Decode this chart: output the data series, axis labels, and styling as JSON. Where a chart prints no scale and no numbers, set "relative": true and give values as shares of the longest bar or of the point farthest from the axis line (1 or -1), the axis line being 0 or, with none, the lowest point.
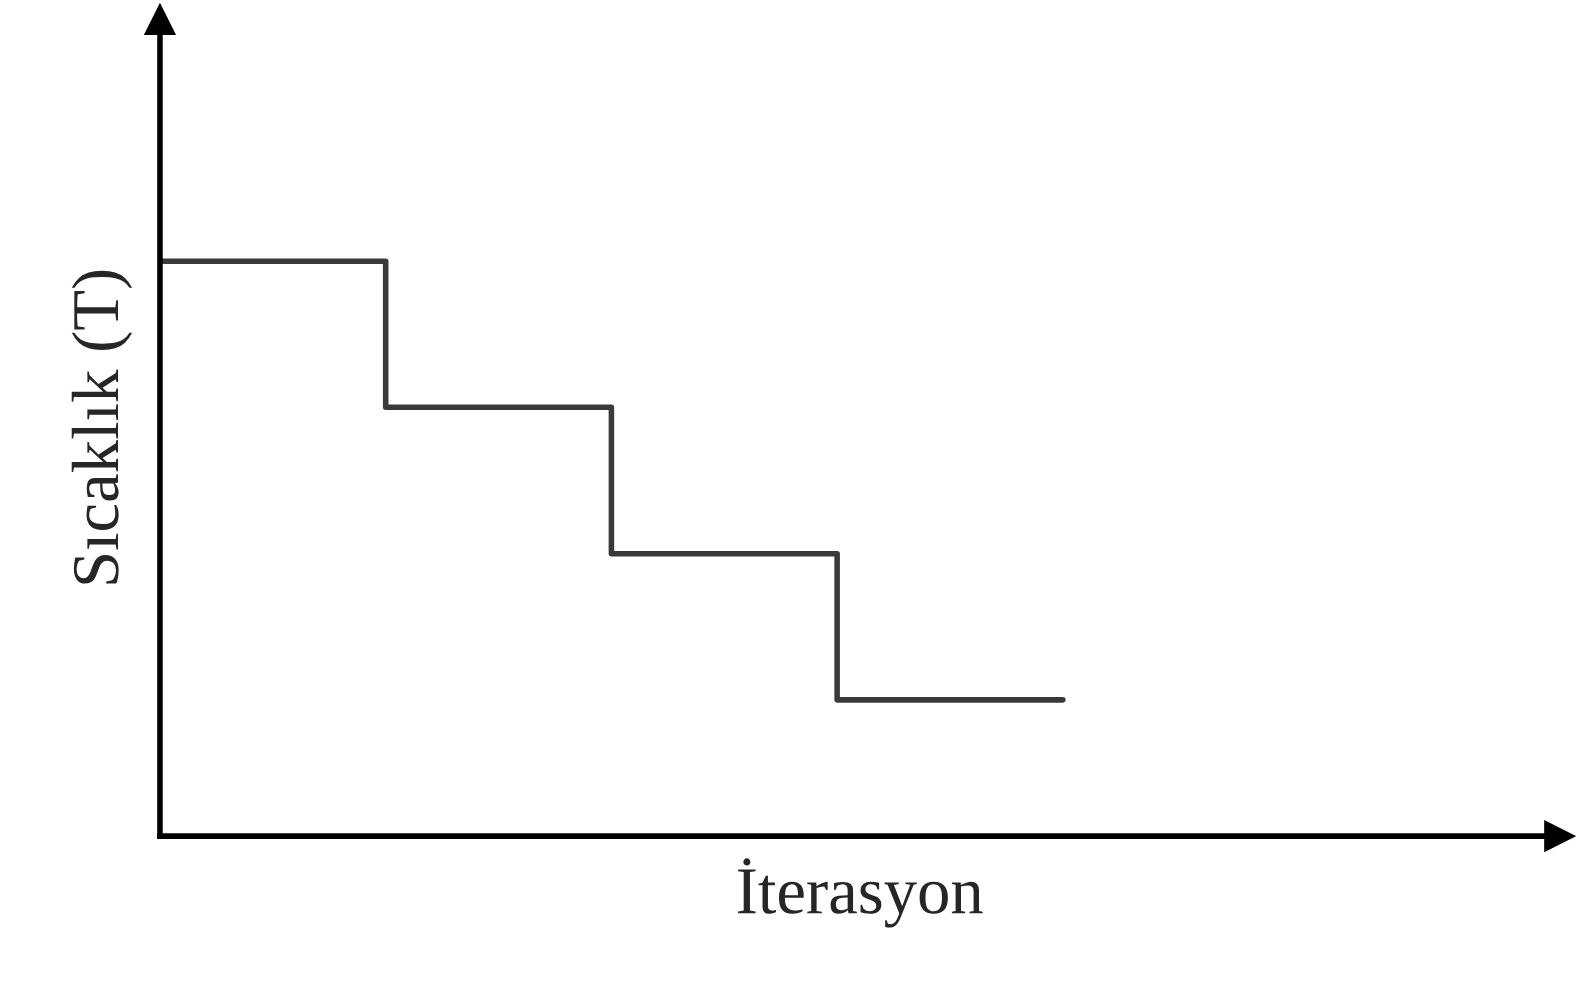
{
  "chart_data": {
    "type": "step",
    "relative": true,
    "xlabel": "İterasyon",
    "ylabel": "Sıcaklık (T)",
    "categories": [
      null,
      null,
      null,
      null,
      null
    ],
    "series": [
      {
        "color": "#3a3a3a",
        "values": [
          1,
          0.746,
          0.491,
          0.237,
          0.237
        ]
      }
    ],
    "tick_labels": false,
    "grid": false,
    "marker": "none",
    "line_style": "solid"
  }
}
